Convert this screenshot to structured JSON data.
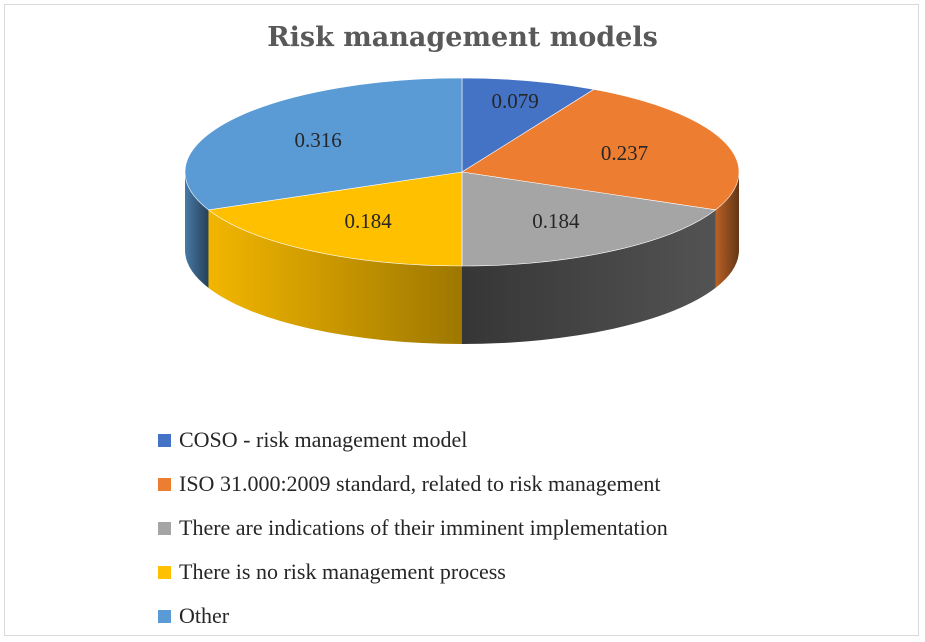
{
  "chart_data": {
    "type": "pie",
    "title": "Risk management models",
    "series": [
      {
        "name": "COSO - risk management model",
        "value": 0.079,
        "label": "0.079",
        "color": "#4472c4"
      },
      {
        "name": "ISO 31.000:2009 standard, related to risk management",
        "value": 0.237,
        "label": "0.237",
        "color": "#ed7d31"
      },
      {
        "name": "There are indications of their imminent implementation",
        "value": 0.184,
        "label": "0.184",
        "color": "#a5a5a5"
      },
      {
        "name": "There is no risk management process",
        "value": 0.184,
        "label": "0.184",
        "color": "#ffc000"
      },
      {
        "name": "Other",
        "value": 0.316,
        "label": "0.316",
        "color": "#5b9bd5"
      }
    ],
    "legend_position": "bottom-left",
    "style": "3d"
  }
}
